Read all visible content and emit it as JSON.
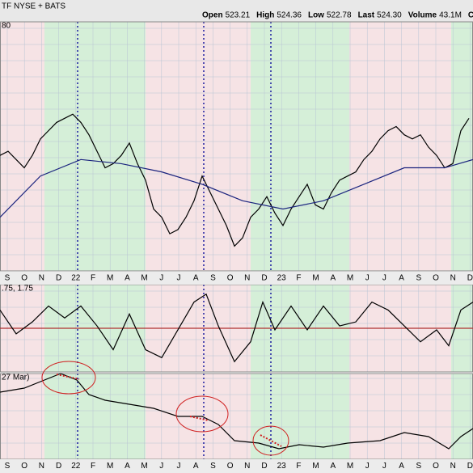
{
  "header": {
    "symbol": "TF NYSE + BATS",
    "stats": [
      {
        "label": "Open",
        "value": "523.21"
      },
      {
        "label": "High",
        "value": "524.36"
      },
      {
        "label": "Low",
        "value": "522.78"
      },
      {
        "label": "Last",
        "value": "524.30"
      },
      {
        "label": "Volume",
        "value": "43.1M"
      },
      {
        "label": "Chg",
        "value": ""
      }
    ]
  },
  "axes": {
    "top_axis": [
      "S",
      "O",
      "N",
      "D",
      "22",
      "F",
      "M",
      "A",
      "M",
      "J",
      "J",
      "A",
      "S",
      "O",
      "N",
      "D",
      "23",
      "F",
      "M",
      "A",
      "M",
      "J",
      "J",
      "A",
      "S",
      "O",
      "N",
      "D"
    ],
    "bottom_axis": [
      "S",
      "O",
      "N",
      "D",
      "22",
      "F",
      "M",
      "A",
      "M",
      "J",
      "J",
      "A",
      "S",
      "O",
      "N",
      "D",
      "23",
      "F",
      "M",
      "A",
      "M",
      "J",
      "J",
      "A",
      "S",
      "O",
      "N",
      "D"
    ]
  },
  "chart_data": [
    {
      "type": "line",
      "label": "80",
      "xlim": [
        0,
        585
      ],
      "ylim": [
        0,
        302
      ],
      "series": [
        {
          "color": "#000000",
          "x": [
            0,
            10,
            20,
            30,
            40,
            50,
            60,
            70,
            80,
            90,
            100,
            110,
            120,
            130,
            140,
            150,
            160,
            170,
            180,
            190,
            200,
            210,
            220,
            230,
            240,
            250,
            260,
            270,
            280,
            290,
            300,
            310,
            320,
            330,
            340,
            350,
            360,
            370,
            380,
            390,
            400,
            410,
            420,
            430,
            440,
            450,
            460,
            470,
            480,
            490,
            500,
            510,
            520,
            530,
            540,
            550,
            560,
            570,
            580
          ],
          "values": [
            140,
            145,
            135,
            125,
            140,
            160,
            170,
            180,
            185,
            190,
            180,
            165,
            145,
            125,
            130,
            140,
            155,
            130,
            110,
            75,
            65,
            45,
            50,
            65,
            85,
            115,
            95,
            75,
            55,
            30,
            40,
            65,
            75,
            90,
            70,
            55,
            75,
            90,
            105,
            80,
            75,
            95,
            110,
            115,
            120,
            135,
            145,
            160,
            170,
            175,
            165,
            160,
            165,
            150,
            140,
            125,
            130,
            170,
            185
          ]
        },
        {
          "color": "#1a237e",
          "x": [
            0,
            50,
            100,
            150,
            200,
            250,
            300,
            350,
            400,
            450,
            500,
            550,
            585
          ],
          "values": [
            65,
            115,
            135,
            130,
            120,
            105,
            85,
            75,
            85,
            105,
            125,
            125,
            135
          ]
        }
      ]
    },
    {
      "type": "line",
      "label": ".75, 1.75",
      "xlim": [
        0,
        585
      ],
      "ylim": [
        -55,
        55
      ],
      "zero_line": 0,
      "series": [
        {
          "color": "#000000",
          "x": [
            0,
            20,
            40,
            60,
            80,
            100,
            120,
            140,
            160,
            180,
            200,
            220,
            240,
            255,
            270,
            290,
            310,
            325,
            340,
            360,
            380,
            400,
            420,
            440,
            460,
            480,
            500,
            520,
            540,
            555,
            570,
            585
          ],
          "values": [
            23,
            -7,
            8,
            28,
            13,
            28,
            3,
            -27,
            18,
            -27,
            -37,
            -2,
            33,
            43,
            3,
            -42,
            -17,
            33,
            -2,
            28,
            -2,
            28,
            3,
            8,
            33,
            23,
            3,
            -17,
            -2,
            -22,
            23,
            33
          ]
        }
      ]
    },
    {
      "type": "line",
      "label": "27 Mar)",
      "xlim": [
        0,
        585
      ],
      "ylim": [
        0,
        106
      ],
      "series": [
        {
          "color": "#000000",
          "x": [
            0,
            30,
            55,
            75,
            95,
            110,
            130,
            160,
            190,
            220,
            250,
            270,
            290,
            320,
            345,
            370,
            400,
            430,
            470,
            500,
            530,
            555,
            570,
            585
          ],
          "values": [
            83,
            88,
            98,
            106,
            98,
            80,
            73,
            68,
            63,
            53,
            53,
            43,
            23,
            20,
            13,
            18,
            15,
            20,
            23,
            33,
            28,
            13,
            28,
            38
          ]
        }
      ]
    }
  ]
}
